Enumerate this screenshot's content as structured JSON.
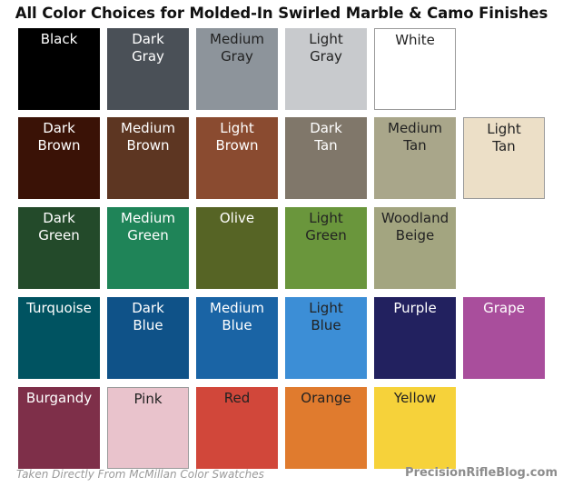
{
  "title": "All Color Choices for Molded-In Swirled Marble & Camo Finishes",
  "footer": {
    "source": "Taken Directly From McMillan Color Swatches",
    "site": "PrecisionRifleBlog.com"
  },
  "rows": [
    [
      {
        "label": "Black",
        "color": "#000000",
        "text_color": "#ffffff"
      },
      {
        "label": "Dark\nGray",
        "color": "#4a5057",
        "text_color": "#ffffff"
      },
      {
        "label": "Medium\nGray",
        "color": "#8d949b",
        "text_color": "#222222"
      },
      {
        "label": "Light\nGray",
        "color": "#c8cacd",
        "text_color": "#222222"
      },
      {
        "label": "White",
        "color": "#ffffff",
        "text_color": "#222222",
        "border": true
      }
    ],
    [
      {
        "label": "Dark\nBrown",
        "color": "#3a1206",
        "text_color": "#ffffff"
      },
      {
        "label": "Medium\nBrown",
        "color": "#5d3622",
        "text_color": "#ffffff"
      },
      {
        "label": "Light\nBrown",
        "color": "#8a4b30",
        "text_color": "#ffffff"
      },
      {
        "label": "Dark\nTan",
        "color": "#80776a",
        "text_color": "#ffffff"
      },
      {
        "label": "Medium\nTan",
        "color": "#a9a68a",
        "text_color": "#222222"
      },
      {
        "label": "Light\nTan",
        "color": "#ecdfc7",
        "text_color": "#222222",
        "border": true
      }
    ],
    [
      {
        "label": "Dark\nGreen",
        "color": "#234a2a",
        "text_color": "#ffffff"
      },
      {
        "label": "Medium\nGreen",
        "color": "#1f8458",
        "text_color": "#ffffff"
      },
      {
        "label": "Olive",
        "color": "#566425",
        "text_color": "#ffffff"
      },
      {
        "label": "Light\nGreen",
        "color": "#6a963c",
        "text_color": "#222222"
      },
      {
        "label": "Woodland\nBeige",
        "color": "#a3a580",
        "text_color": "#222222"
      }
    ],
    [
      {
        "label": "Turquoise",
        "color": "#005361",
        "text_color": "#ffffff"
      },
      {
        "label": "Dark\nBlue",
        "color": "#0f5288",
        "text_color": "#ffffff"
      },
      {
        "label": "Medium\nBlue",
        "color": "#1a64a5",
        "text_color": "#ffffff"
      },
      {
        "label": "Light\nBlue",
        "color": "#3c8ed6",
        "text_color": "#222222"
      },
      {
        "label": "Purple",
        "color": "#22215f",
        "text_color": "#ffffff"
      },
      {
        "label": "Grape",
        "color": "#a94e9c",
        "text_color": "#ffffff"
      }
    ],
    [
      {
        "label": "Burgandy",
        "color": "#7e2f49",
        "text_color": "#ffffff"
      },
      {
        "label": "Pink",
        "color": "#e9c3cc",
        "text_color": "#222222",
        "border": true
      },
      {
        "label": "Red",
        "color": "#d1473a",
        "text_color": "#222222"
      },
      {
        "label": "Orange",
        "color": "#e07b2e",
        "text_color": "#222222"
      },
      {
        "label": "Yellow",
        "color": "#f6d23a",
        "text_color": "#222222"
      }
    ]
  ]
}
